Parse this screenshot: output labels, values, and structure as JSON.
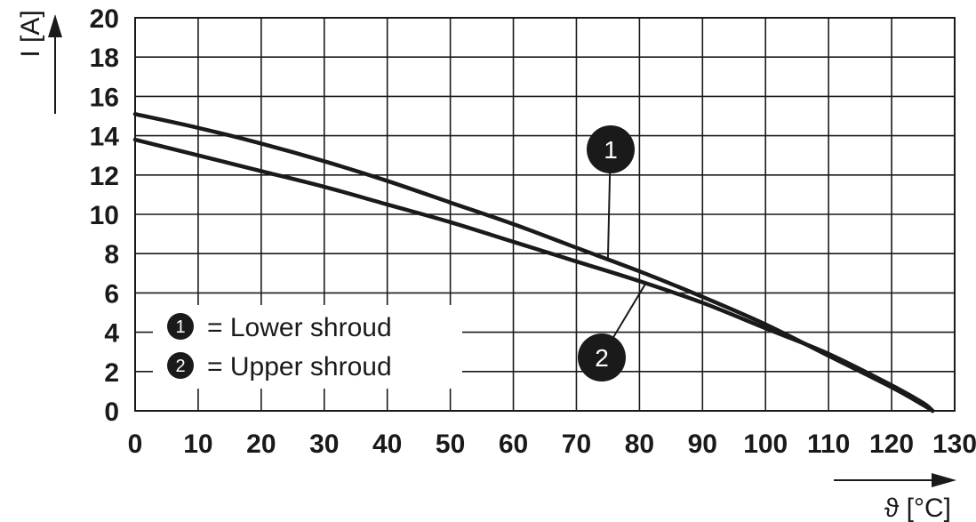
{
  "chart_data": {
    "type": "line",
    "xlabel": "ϑ [°C]",
    "ylabel": "I [A]",
    "xlim": [
      0,
      130
    ],
    "ylim": [
      0,
      20
    ],
    "x_ticks": [
      "0",
      "10",
      "20",
      "30",
      "40",
      "50",
      "60",
      "70",
      "80",
      "90",
      "100",
      "110",
      "120",
      "130"
    ],
    "y_ticks": [
      "0",
      "2",
      "4",
      "6",
      "8",
      "10",
      "12",
      "14",
      "16",
      "18",
      "20"
    ],
    "grid": true,
    "series": [
      {
        "marker": "1",
        "name": "Lower shroud",
        "x": [
          0,
          10,
          20,
          30,
          40,
          50,
          60,
          70,
          80,
          90,
          100,
          110,
          120,
          125,
          126.5
        ],
        "y": [
          15.1,
          14.4,
          13.6,
          12.7,
          11.7,
          10.6,
          9.5,
          8.3,
          7.1,
          5.8,
          4.4,
          2.8,
          1.2,
          0.3,
          0
        ]
      },
      {
        "marker": "2",
        "name": "Upper shroud",
        "x": [
          0,
          10,
          20,
          30,
          40,
          50,
          60,
          70,
          80,
          90,
          100,
          110,
          120,
          125,
          126.5
        ],
        "y": [
          13.8,
          13.0,
          12.2,
          11.4,
          10.5,
          9.6,
          8.6,
          7.6,
          6.6,
          5.5,
          4.2,
          2.9,
          1.3,
          0.4,
          0
        ]
      }
    ],
    "legend": {
      "position": "bottom-left",
      "entries": [
        {
          "marker": "1",
          "separator": "=",
          "label": "Lower shroud"
        },
        {
          "marker": "2",
          "separator": "=",
          "label": "Upper shroud"
        }
      ]
    },
    "annotations": [
      {
        "marker": "1",
        "target_series": 0,
        "target_x": 75
      },
      {
        "marker": "2",
        "target_series": 1,
        "target_x": 81
      }
    ],
    "colors": {
      "line": "#1a1a1a",
      "grid": "#1a1a1a",
      "marker_fill": "#1a1a1a",
      "marker_text": "#ffffff"
    }
  }
}
